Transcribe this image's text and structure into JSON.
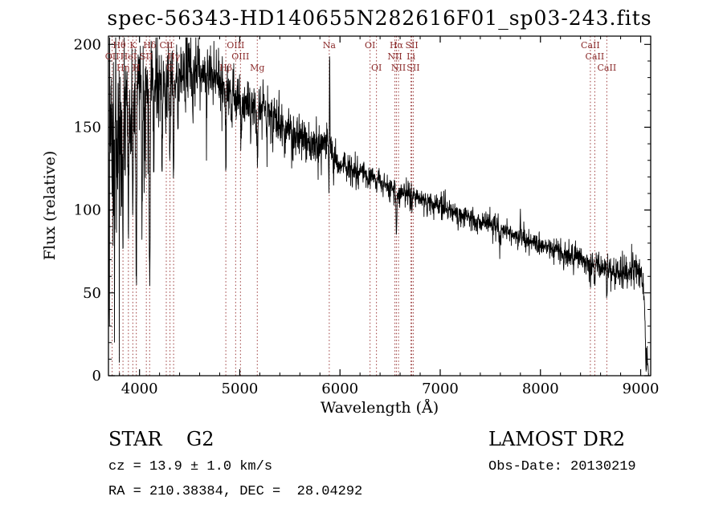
{
  "chart_data": {
    "type": "line",
    "title": "spec-56343-HD140655N282616F01_sp03-243.fits",
    "xlabel": "Wavelength (Å)",
    "ylabel": "Flux (relative)",
    "xlim": [
      3690,
      9100
    ],
    "ylim": [
      0,
      205
    ],
    "xticks": [
      4000,
      5000,
      6000,
      7000,
      8000,
      9000
    ],
    "yticks": [
      0,
      50,
      100,
      150,
      200
    ],
    "x_minor_step": 200,
    "y_minor_step": 10,
    "line_color": "#000000",
    "marker_color": "#9B3B3B",
    "label_color": "#8B2B2B",
    "seed": 20130219,
    "step": 2,
    "spectral_lines": [
      {
        "wl": 3727,
        "label": "OII",
        "row": 2
      },
      {
        "wl": 3798,
        "label": "Hθ",
        "row": 1
      },
      {
        "wl": 3835,
        "label": "Hη",
        "row": 3
      },
      {
        "wl": 3889,
        "label": "HeI",
        "row": 2
      },
      {
        "wl": 3933,
        "label": "K",
        "row": 1
      },
      {
        "wl": 3968,
        "label": "H",
        "row": 3
      },
      {
        "wl": 4068,
        "label": "SII",
        "row": 2
      },
      {
        "wl": 4101,
        "label": "Hδ",
        "row": 1
      },
      {
        "wl": 4267,
        "label": "CII",
        "row": 1
      },
      {
        "wl": 4304,
        "label": "G",
        "row": 3
      },
      {
        "wl": 4340,
        "label": "Hγ",
        "row": 2
      },
      {
        "wl": 4861,
        "label": "Hβ",
        "row": 3
      },
      {
        "wl": 4959,
        "label": "OIII",
        "row": 1
      },
      {
        "wl": 5007,
        "label": "OIII",
        "row": 2
      },
      {
        "wl": 5175,
        "label": "Mg",
        "row": 3
      },
      {
        "wl": 5893,
        "label": "Na",
        "row": 1
      },
      {
        "wl": 6300,
        "label": "OI",
        "row": 1
      },
      {
        "wl": 6364,
        "label": "OI",
        "row": 3
      },
      {
        "wl": 6548,
        "label": "NII",
        "row": 2
      },
      {
        "wl": 6563,
        "label": "Hα",
        "row": 1
      },
      {
        "wl": 6584,
        "label": "NII",
        "row": 3
      },
      {
        "wl": 6708,
        "label": "Li",
        "row": 2
      },
      {
        "wl": 6716,
        "label": "SII",
        "row": 1
      },
      {
        "wl": 6731,
        "label": "SII",
        "row": 3
      },
      {
        "wl": 8498,
        "label": "CaII",
        "row": 1
      },
      {
        "wl": 8542,
        "label": "CaII",
        "row": 2
      },
      {
        "wl": 8662,
        "label": "CaII",
        "row": 3
      }
    ],
    "continuum": [
      [
        3690,
        150
      ],
      [
        3720,
        168
      ],
      [
        3760,
        172
      ],
      [
        3800,
        172
      ],
      [
        3850,
        171
      ],
      [
        3900,
        172
      ],
      [
        3950,
        173
      ],
      [
        4000,
        174
      ],
      [
        4060,
        176
      ],
      [
        4120,
        177
      ],
      [
        4180,
        179
      ],
      [
        4240,
        180
      ],
      [
        4300,
        179
      ],
      [
        4360,
        181
      ],
      [
        4420,
        183
      ],
      [
        4480,
        185
      ],
      [
        4540,
        184
      ],
      [
        4600,
        183
      ],
      [
        4660,
        182
      ],
      [
        4720,
        181
      ],
      [
        4780,
        178
      ],
      [
        4840,
        175
      ],
      [
        4900,
        171
      ],
      [
        4960,
        167
      ],
      [
        5020,
        165
      ],
      [
        5080,
        163
      ],
      [
        5140,
        163
      ],
      [
        5200,
        165
      ],
      [
        5260,
        162
      ],
      [
        5320,
        158
      ],
      [
        5380,
        154
      ],
      [
        5440,
        151
      ],
      [
        5500,
        148
      ],
      [
        5560,
        146
      ],
      [
        5620,
        144
      ],
      [
        5680,
        142
      ],
      [
        5740,
        141
      ],
      [
        5800,
        141
      ],
      [
        5860,
        143
      ],
      [
        5885,
        147
      ],
      [
        5905,
        136
      ],
      [
        5930,
        130
      ],
      [
        5960,
        128
      ],
      [
        6000,
        127
      ],
      [
        6100,
        125
      ],
      [
        6200,
        123
      ],
      [
        6300,
        121
      ],
      [
        6400,
        118
      ],
      [
        6500,
        114
      ],
      [
        6600,
        111
      ],
      [
        6700,
        109
      ],
      [
        6800,
        108
      ],
      [
        6900,
        105
      ],
      [
        7000,
        103
      ],
      [
        7100,
        100
      ],
      [
        7200,
        98
      ],
      [
        7300,
        96
      ],
      [
        7400,
        93
      ],
      [
        7500,
        91
      ],
      [
        7600,
        89
      ],
      [
        7700,
        86
      ],
      [
        7800,
        83
      ],
      [
        7900,
        81
      ],
      [
        8000,
        79
      ],
      [
        8100,
        77
      ],
      [
        8200,
        75
      ],
      [
        8300,
        73
      ],
      [
        8400,
        71
      ],
      [
        8500,
        68
      ],
      [
        8600,
        66
      ],
      [
        8700,
        63
      ],
      [
        8800,
        61
      ],
      [
        8900,
        63
      ],
      [
        8950,
        66
      ],
      [
        9000,
        61
      ],
      [
        9020,
        56
      ],
      [
        9040,
        42
      ],
      [
        9060,
        14
      ],
      [
        9080,
        2
      ]
    ],
    "noise_amp": [
      [
        3690,
        26
      ],
      [
        3800,
        24
      ],
      [
        3900,
        21
      ],
      [
        4000,
        17
      ],
      [
        4100,
        15
      ],
      [
        4200,
        12
      ],
      [
        4350,
        10
      ],
      [
        4500,
        8
      ],
      [
        4800,
        7
      ],
      [
        5100,
        6.5
      ],
      [
        5400,
        6
      ],
      [
        5700,
        5.5
      ],
      [
        5900,
        5
      ],
      [
        5950,
        4
      ],
      [
        6000,
        3.5
      ],
      [
        6300,
        3.2
      ],
      [
        6600,
        3
      ],
      [
        7000,
        2.8
      ],
      [
        7600,
        2.8
      ],
      [
        8000,
        2.8
      ],
      [
        8400,
        3
      ],
      [
        8700,
        3.5
      ],
      [
        8900,
        4.5
      ],
      [
        9000,
        5
      ],
      [
        9080,
        3
      ]
    ],
    "features": [
      [
        3697,
        -120,
        3
      ],
      [
        3727,
        -50,
        4
      ],
      [
        3750,
        -90,
        4
      ],
      [
        3770,
        -60,
        3
      ],
      [
        3798,
        -85,
        4
      ],
      [
        3820,
        -55,
        3
      ],
      [
        3835,
        -80,
        4
      ],
      [
        3860,
        -50,
        3
      ],
      [
        3889,
        -75,
        4
      ],
      [
        3912,
        -40,
        3
      ],
      [
        3933,
        -70,
        4
      ],
      [
        3968,
        -125,
        5
      ],
      [
        4023,
        -60,
        4
      ],
      [
        4045,
        -40,
        3
      ],
      [
        4101,
        -130,
        5
      ],
      [
        4144,
        -35,
        3
      ],
      [
        4226,
        -45,
        3
      ],
      [
        4260,
        -30,
        3
      ],
      [
        4304,
        -55,
        5
      ],
      [
        4340,
        -60,
        4
      ],
      [
        4383,
        -35,
        3
      ],
      [
        4455,
        -25,
        3
      ],
      [
        4531,
        -25,
        3
      ],
      [
        4668,
        -25,
        3
      ],
      [
        4861,
        -48,
        4
      ],
      [
        4920,
        -18,
        3
      ],
      [
        5015,
        -15,
        3
      ],
      [
        5110,
        -18,
        3
      ],
      [
        5175,
        -28,
        6
      ],
      [
        5270,
        -20,
        4
      ],
      [
        5328,
        -15,
        3
      ],
      [
        5406,
        -12,
        3
      ],
      [
        5446,
        -12,
        3
      ],
      [
        5530,
        -12,
        3
      ],
      [
        5710,
        -10,
        3
      ],
      [
        5782,
        -8,
        3
      ],
      [
        5860,
        -15,
        3
      ],
      [
        5889,
        -30,
        3.5
      ],
      [
        5897,
        60,
        2.5
      ],
      [
        6122,
        -8,
        3
      ],
      [
        6162,
        -8,
        3
      ],
      [
        6280,
        -8,
        3
      ],
      [
        6366,
        -8,
        3
      ],
      [
        6495,
        -8,
        3
      ],
      [
        6563,
        -26,
        4
      ],
      [
        6717,
        -6,
        3
      ],
      [
        6870,
        -10,
        4
      ],
      [
        7180,
        -7,
        4
      ],
      [
        7340,
        -6,
        3
      ],
      [
        7594,
        -12,
        4
      ],
      [
        7800,
        16,
        2.5
      ],
      [
        8230,
        -6,
        3
      ],
      [
        8330,
        -6,
        3
      ],
      [
        8498,
        -12,
        3
      ],
      [
        8542,
        -16,
        3
      ],
      [
        8662,
        -14,
        3
      ],
      [
        8750,
        -8,
        3
      ],
      [
        8920,
        10,
        3
      ],
      [
        9052,
        -20,
        4
      ]
    ]
  },
  "footer": {
    "class_label": "STAR    G2",
    "survey": "LAMOST DR2",
    "cz": "cz = 13.9 ± 1.0 km/s",
    "obs_date": "Obs-Date: 20130219",
    "radec": "RA = 210.38384, DEC =  28.04292"
  }
}
